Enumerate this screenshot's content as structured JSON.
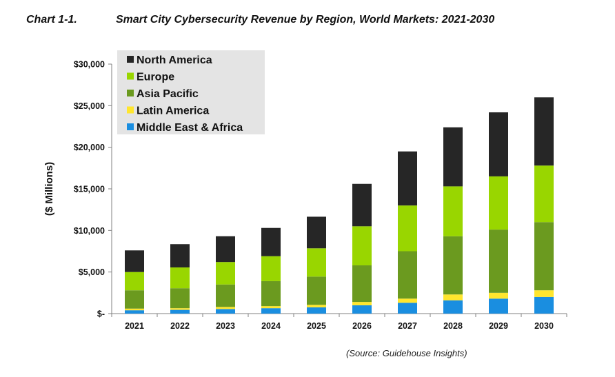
{
  "chart_label": "Chart 1-1.",
  "source": "(Source: Guidehouse Insights)",
  "chart_data": {
    "type": "bar",
    "stacked": true,
    "title": "Smart City Cybersecurity Revenue by Region, World Markets: 2021-2030",
    "xlabel": "",
    "ylabel": "($ Millions)",
    "ylim": [
      0,
      30000
    ],
    "yticks": [
      0,
      5000,
      10000,
      15000,
      20000,
      25000,
      30000
    ],
    "ytick_labels": [
      "$-",
      "$5,000",
      "$10,000",
      "$15,000",
      "$20,000",
      "$25,000",
      "$30,000"
    ],
    "categories": [
      "2021",
      "2022",
      "2023",
      "2024",
      "2025",
      "2026",
      "2027",
      "2028",
      "2029",
      "2030"
    ],
    "legend_position": "top-left",
    "grid": false,
    "series": [
      {
        "name": "Middle East & Africa",
        "color": "#1a8ee0",
        "values": [
          400,
          450,
          550,
          650,
          750,
          1000,
          1300,
          1600,
          1800,
          2000
        ]
      },
      {
        "name": "Latin America",
        "color": "#ffe62e",
        "values": [
          200,
          200,
          250,
          250,
          300,
          400,
          500,
          700,
          700,
          800
        ]
      },
      {
        "name": "Asia Pacific",
        "color": "#6b9a1f",
        "values": [
          2200,
          2400,
          2700,
          3000,
          3400,
          4400,
          5700,
          7000,
          7600,
          8200
        ]
      },
      {
        "name": "Europe",
        "color": "#99d600",
        "values": [
          2200,
          2500,
          2700,
          3000,
          3400,
          4700,
          5500,
          6000,
          6400,
          6800
        ]
      },
      {
        "name": "North America",
        "color": "#262626",
        "values": [
          2600,
          2800,
          3100,
          3400,
          3800,
          5100,
          6500,
          7100,
          7700,
          8200
        ]
      }
    ],
    "legend_order": [
      "North America",
      "Europe",
      "Asia Pacific",
      "Latin America",
      "Middle East & Africa"
    ]
  }
}
